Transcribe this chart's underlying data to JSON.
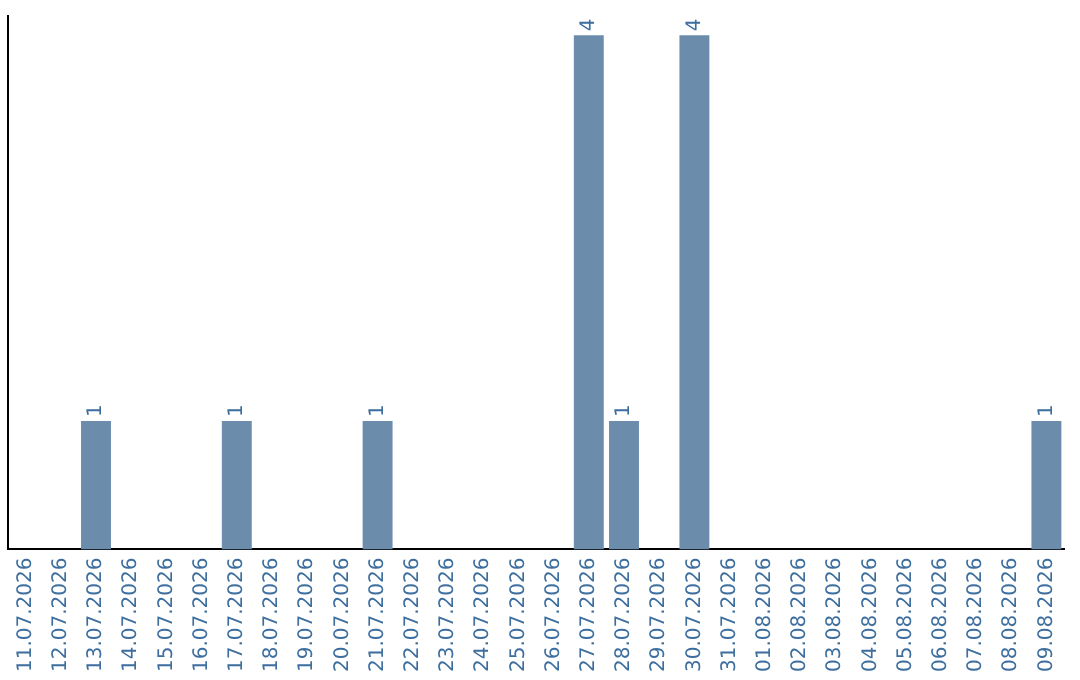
{
  "chart_data": {
    "type": "bar",
    "categories": [
      "11.07.2026",
      "12.07.2026",
      "13.07.2026",
      "14.07.2026",
      "15.07.2026",
      "16.07.2026",
      "17.07.2026",
      "18.07.2026",
      "19.07.2026",
      "20.07.2026",
      "21.07.2026",
      "22.07.2026",
      "23.07.2026",
      "24.07.2026",
      "25.07.2026",
      "26.07.2026",
      "27.07.2026",
      "28.07.2026",
      "29.07.2026",
      "30.07.2026",
      "31.07.2026",
      "01.08.2026",
      "02.08.2026",
      "03.08.2026",
      "04.08.2026",
      "05.08.2026",
      "06.08.2026",
      "07.08.2026",
      "08.08.2026",
      "09.08.2026"
    ],
    "values": [
      0,
      0,
      1,
      0,
      0,
      0,
      1,
      0,
      0,
      0,
      1,
      0,
      0,
      0,
      0,
      0,
      4,
      1,
      0,
      4,
      0,
      0,
      0,
      0,
      0,
      0,
      0,
      0,
      0,
      1
    ],
    "value_labels": [
      null,
      null,
      "1",
      null,
      null,
      null,
      "1",
      null,
      null,
      null,
      "1",
      null,
      null,
      null,
      null,
      null,
      "4",
      "1",
      null,
      "4",
      null,
      null,
      null,
      null,
      null,
      null,
      null,
      null,
      null,
      "1"
    ],
    "color": "#6b8cab",
    "ylim": [
      0,
      4.15
    ],
    "tick_labels": "x",
    "grid": false,
    "legend": false
  }
}
